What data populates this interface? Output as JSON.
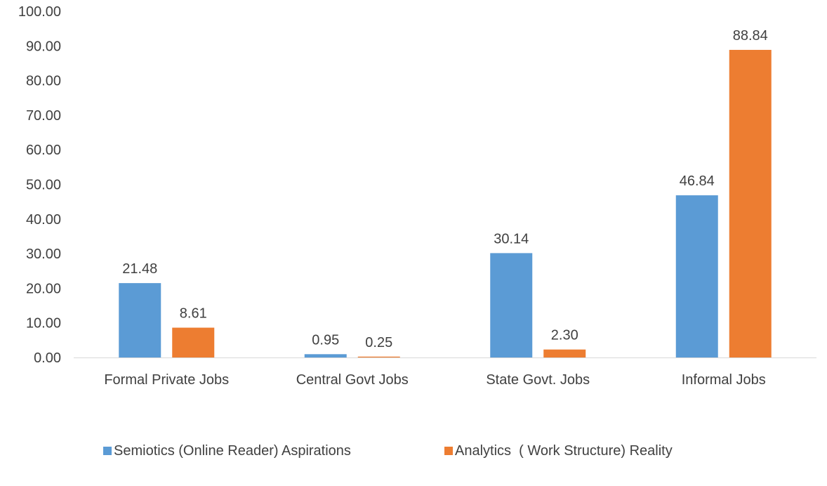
{
  "chart_data": {
    "type": "bar",
    "title": "",
    "xlabel": "",
    "ylabel": "",
    "categories": [
      "Formal Private Jobs",
      "Central Govt Jobs",
      "State Govt. Jobs",
      "Informal Jobs"
    ],
    "series": [
      {
        "name": "Semiotics (Online Reader) Aspirations",
        "values": [
          21.48,
          0.95,
          30.14,
          46.84
        ],
        "color": "#5b9bd5"
      },
      {
        "name": "Analytics  ( Work Structure) Reality",
        "values": [
          8.61,
          0.25,
          2.3,
          88.84
        ],
        "color": "#ed7d31"
      }
    ],
    "ylim": [
      0,
      100
    ],
    "yticks": [
      0,
      10,
      20,
      30,
      40,
      50,
      60,
      70,
      80,
      90,
      100
    ],
    "ytick_decimals": 2,
    "grid": false,
    "legend_position": "bottom"
  }
}
